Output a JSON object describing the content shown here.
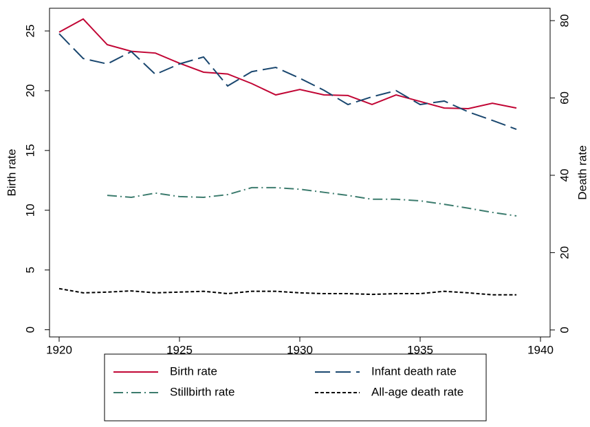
{
  "chart_data": {
    "type": "line",
    "y_label": "Birth rate",
    "y2_label": "Death rate",
    "x": [
      1920,
      1921,
      1922,
      1923,
      1924,
      1925,
      1926,
      1927,
      1928,
      1929,
      1930,
      1931,
      1932,
      1933,
      1934,
      1935,
      1936,
      1937,
      1938,
      1939
    ],
    "xlim": [
      1919.6,
      1940.4
    ],
    "xticks": [
      1920,
      1925,
      1930,
      1935,
      1940
    ],
    "ylim": [
      -0.6,
      26.9
    ],
    "yticks": [
      0,
      5,
      10,
      15,
      20,
      25
    ],
    "y2lim": [
      -1.8,
      83.2
    ],
    "y2ticks": [
      0,
      20,
      40,
      60,
      80
    ],
    "legend": "bottom",
    "series": [
      {
        "name": "Birth rate",
        "color": "#c10534",
        "dash": "solid",
        "values": [
          24.9,
          26.0,
          23.85,
          23.3,
          23.15,
          22.3,
          21.55,
          21.4,
          20.6,
          19.65,
          20.1,
          19.65,
          19.6,
          18.85,
          19.65,
          19.1,
          18.55,
          18.5,
          18.95,
          18.55
        ]
      },
      {
        "name": "Infant death rate",
        "color": "#1a476f",
        "dash": "22 8",
        "axis": "y2",
        "values": [
          76.6,
          70.2,
          68.8,
          72.0,
          66.1,
          68.8,
          70.6,
          63.1,
          66.8,
          67.9,
          65.1,
          62.0,
          58.3,
          60.3,
          61.9,
          58.3,
          59.2,
          56.4,
          54.2,
          51.9
        ]
      },
      {
        "name": "Stillbirth rate",
        "color": "#3b7b6d",
        "dash": "14 5 2 5",
        "axis": "y2",
        "values": [
          null,
          null,
          34.8,
          34.3,
          35.4,
          34.5,
          34.3,
          35.0,
          36.8,
          36.8,
          36.4,
          35.6,
          34.8,
          33.8,
          33.8,
          33.4,
          32.5,
          31.5,
          30.4,
          29.5
        ]
      },
      {
        "name": "All-age death rate",
        "color": "#000000",
        "dash": "5 3",
        "axis": "y2",
        "values": [
          10.7,
          9.6,
          9.8,
          10.1,
          9.6,
          9.8,
          10.0,
          9.4,
          10.0,
          10.0,
          9.6,
          9.4,
          9.4,
          9.2,
          9.4,
          9.4,
          10.0,
          9.6,
          9.1,
          9.1
        ]
      }
    ]
  }
}
